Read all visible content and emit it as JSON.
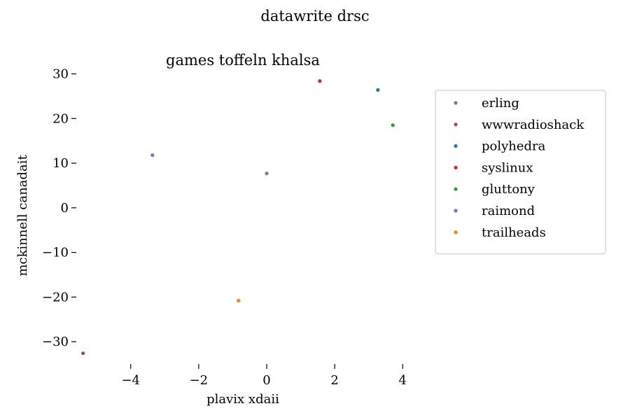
{
  "chart_data": {
    "type": "scatter",
    "suptitle": "datawrite drsc",
    "title": "games toffeln khalsa",
    "xlabel": "plavix xdaii",
    "ylabel": "mckinnell canadait",
    "xlim": [
      -5.6,
      4.2
    ],
    "ylim": [
      -35,
      31.5
    ],
    "xticks": [
      -4,
      -2,
      0,
      2,
      4
    ],
    "xtick_labels": [
      "−4",
      "−2",
      "0",
      "2",
      "4"
    ],
    "yticks": [
      30,
      20,
      10,
      0,
      -10,
      -20,
      -30
    ],
    "ytick_labels": [
      "30",
      "20",
      "10",
      "0",
      "−10",
      "−20",
      "−30"
    ],
    "grid": false,
    "legend_position": "right, upper",
    "series": [
      {
        "name": "erling",
        "color": "#7f7f7f",
        "x": [
          0.0
        ],
        "y": [
          7.7
        ]
      },
      {
        "name": "wwwradioshack",
        "color": "#8c564b",
        "x": [
          -5.4
        ],
        "y": [
          -32.6
        ]
      },
      {
        "name": "polyhedra",
        "color": "#1f77b4",
        "x": [
          3.27
        ],
        "y": [
          26.4
        ]
      },
      {
        "name": "syslinux",
        "color": "#d62728",
        "x": [
          1.56
        ],
        "y": [
          28.4
        ]
      },
      {
        "name": "gluttony",
        "color": "#2ca02c",
        "x": [
          3.71
        ],
        "y": [
          18.5
        ]
      },
      {
        "name": "raimond",
        "color": "#9467bd",
        "x": [
          -3.36
        ],
        "y": [
          11.8
        ]
      },
      {
        "name": "trailheads",
        "color": "#ff7f0e",
        "x": [
          -0.83
        ],
        "y": [
          -20.8
        ]
      }
    ]
  }
}
